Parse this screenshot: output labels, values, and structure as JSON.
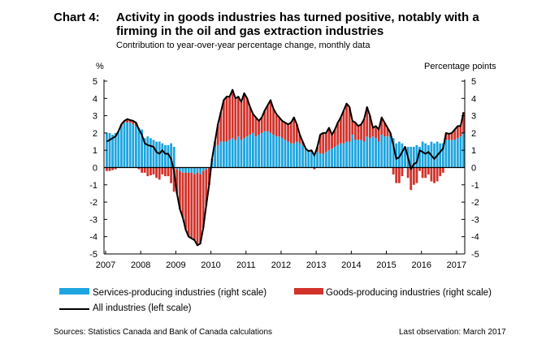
{
  "chart_number": "Chart 4:",
  "chart_data": {
    "type": "bar",
    "title": "Activity in goods industries has turned positive, notably with a firming in the oil and gas extraction industries",
    "subtitle": "Contribution to year-over-year percentage change, monthly data",
    "left_axis_label": "%",
    "right_axis_label": "Percentage points",
    "ylim": [
      -5,
      5
    ],
    "yticks": [
      "5",
      "4",
      "3",
      "2",
      "1",
      "0",
      "-1",
      "-2",
      "-3",
      "-4",
      "-5"
    ],
    "xticks": [
      "2007",
      "2008",
      "2009",
      "2010",
      "2011",
      "2012",
      "2013",
      "2014",
      "2015",
      "2016",
      "2017"
    ],
    "x_start": "2007-01",
    "x_end": "2017-03",
    "frequency": "monthly",
    "grid": false,
    "legend_placement": "bottom",
    "series": [
      {
        "name": "Services-producing industries (right scale)",
        "kind": "stacked-bar",
        "color": "#1ea5df",
        "values": [
          2.0,
          2.0,
          1.9,
          2.0,
          2.1,
          2.4,
          2.6,
          2.6,
          2.6,
          2.5,
          2.4,
          2.3,
          2.2,
          1.7,
          1.8,
          1.7,
          1.6,
          1.5,
          1.5,
          1.4,
          1.3,
          1.3,
          1.4,
          1.2,
          -0.1,
          -0.2,
          -0.3,
          -0.3,
          -0.3,
          -0.3,
          -0.4,
          -0.3,
          -0.4,
          -0.2,
          -0.1,
          0.0,
          0.4,
          1.2,
          1.3,
          1.5,
          1.5,
          1.5,
          1.6,
          1.7,
          1.6,
          1.8,
          1.6,
          1.7,
          1.8,
          1.9,
          2.0,
          1.8,
          1.9,
          2.0,
          2.1,
          2.1,
          2.0,
          1.9,
          1.8,
          1.8,
          1.7,
          1.6,
          1.5,
          1.4,
          1.4,
          1.5,
          1.4,
          1.3,
          1.1,
          0.9,
          0.9,
          0.8,
          0.9,
          0.8,
          0.8,
          0.9,
          1.0,
          1.1,
          1.2,
          1.3,
          1.4,
          1.4,
          1.5,
          1.5,
          1.9,
          1.6,
          1.6,
          1.6,
          1.5,
          1.8,
          1.7,
          1.8,
          1.7,
          1.5,
          1.9,
          1.8,
          1.8,
          1.8,
          1.7,
          1.4,
          1.5,
          1.4,
          1.2,
          1.2,
          1.2,
          1.2,
          1.3,
          1.2,
          1.5,
          1.4,
          1.3,
          1.5,
          1.4,
          1.5,
          1.4,
          1.4,
          1.6,
          1.6,
          1.6,
          1.6,
          1.7,
          1.8,
          2.0
        ]
      },
      {
        "name": "Goods-producing industries (right scale)",
        "kind": "stacked-bar",
        "color": "#d1332b",
        "values": [
          -0.2,
          -0.2,
          -0.15,
          -0.1,
          0.0,
          0.1,
          0.1,
          0.2,
          0.15,
          0.2,
          0.2,
          -0.1,
          -0.3,
          -0.3,
          -0.5,
          -0.45,
          -0.4,
          -0.6,
          -0.7,
          -0.4,
          -0.5,
          -0.5,
          -0.9,
          -1.4,
          -1.4,
          -2.2,
          -2.6,
          -3.3,
          -3.7,
          -3.8,
          -3.8,
          -4.2,
          -4.0,
          -3.3,
          -2.1,
          -1.0,
          0.1,
          0.3,
          1.2,
          1.7,
          2.4,
          2.6,
          2.5,
          2.8,
          2.4,
          2.3,
          2.2,
          2.6,
          2.2,
          1.6,
          1.1,
          1.1,
          0.8,
          0.9,
          1.2,
          1.5,
          1.9,
          1.5,
          1.3,
          1.1,
          1.0,
          1.0,
          1.0,
          1.2,
          1.5,
          1.0,
          0.5,
          0.2,
          0.0,
          0.05,
          0.1,
          -0.1,
          0.3,
          1.1,
          1.2,
          1.1,
          1.3,
          0.8,
          1.0,
          1.3,
          1.5,
          1.9,
          2.2,
          2.0,
          0.8,
          1.0,
          0.8,
          0.9,
          1.3,
          1.7,
          1.3,
          0.5,
          0.7,
          0.7,
          1.0,
          0.8,
          0.5,
          0.2,
          -0.4,
          -0.9,
          -0.9,
          -0.5,
          0.0,
          -0.6,
          -1.3,
          -1.0,
          -0.9,
          -0.2,
          -0.6,
          -0.6,
          -0.4,
          -0.8,
          -0.9,
          -0.8,
          -0.5,
          -0.3,
          0.4,
          0.35,
          0.4,
          0.6,
          0.7,
          0.6,
          1.2
        ]
      },
      {
        "name": "All industries (left scale)",
        "kind": "line",
        "color": "#000000",
        "values": [
          1.5,
          1.6,
          1.7,
          1.8,
          2.1,
          2.5,
          2.7,
          2.8,
          2.75,
          2.7,
          2.6,
          2.2,
          1.9,
          1.4,
          1.3,
          1.25,
          1.2,
          0.9,
          0.8,
          1.0,
          0.8,
          0.8,
          0.5,
          -0.2,
          -1.5,
          -2.4,
          -2.9,
          -3.6,
          -4.0,
          -4.1,
          -4.2,
          -4.5,
          -4.4,
          -3.5,
          -2.2,
          -1.0,
          0.5,
          1.5,
          2.5,
          3.2,
          3.9,
          4.1,
          4.1,
          4.5,
          4.0,
          4.1,
          3.8,
          4.3,
          4.0,
          3.5,
          3.1,
          2.9,
          2.7,
          2.9,
          3.3,
          3.6,
          3.9,
          3.4,
          3.1,
          2.9,
          2.7,
          2.6,
          2.5,
          2.6,
          2.9,
          2.5,
          1.9,
          1.5,
          1.1,
          0.95,
          1.0,
          0.7,
          1.2,
          1.9,
          2.0,
          2.0,
          2.3,
          1.9,
          2.2,
          2.6,
          2.9,
          3.3,
          3.7,
          3.5,
          2.7,
          2.6,
          2.4,
          2.5,
          2.8,
          3.5,
          3.0,
          2.3,
          2.4,
          2.2,
          2.9,
          2.6,
          2.3,
          2.0,
          1.3,
          0.5,
          0.6,
          0.9,
          1.2,
          0.6,
          -0.1,
          0.2,
          0.3,
          1.0,
          0.9,
          0.8,
          0.9,
          0.7,
          0.5,
          0.7,
          0.9,
          1.1,
          2.0,
          1.95,
          2.0,
          2.2,
          2.4,
          2.4,
          3.2
        ]
      }
    ]
  },
  "source": "Sources: Statistics Canada and Bank of Canada calculations",
  "last_observation": "Last observation: March 2017"
}
